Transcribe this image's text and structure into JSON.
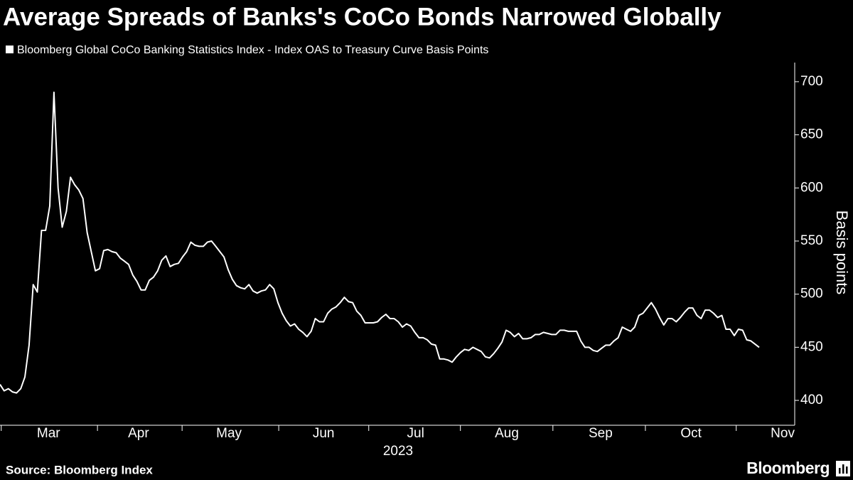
{
  "chart_data": {
    "type": "line",
    "title": "Average Spreads of Banks's CoCo Bonds Narrowed Globally",
    "source": "Source: Bloomberg Index",
    "brand": "Bloomberg",
    "ylabel": "Basis points",
    "x_sublabel": "2023",
    "series": [
      {
        "name": "Bloomberg Global CoCo Banking Statistics Index - Index OAS to Treasury Curve Basis Points",
        "color": "#ffffff",
        "values": [
          415,
          409,
          411,
          408,
          407,
          411,
          422,
          452,
          509,
          502,
          560,
          560,
          583,
          690,
          600,
          563,
          578,
          610,
          603,
          598,
          590,
          558,
          540,
          522,
          524,
          541,
          542,
          540,
          539,
          534,
          531,
          528,
          518,
          512,
          504,
          504,
          513,
          516,
          522,
          532,
          536,
          526,
          528,
          529,
          535,
          540,
          549,
          546,
          545,
          545,
          549,
          550,
          545,
          540,
          535,
          523,
          514,
          508,
          506,
          505,
          509,
          503,
          501,
          503,
          504,
          509,
          505,
          492,
          482,
          475,
          470,
          472,
          467,
          464,
          460,
          465,
          477,
          474,
          474,
          482,
          486,
          488,
          492,
          497,
          493,
          492,
          484,
          480,
          473,
          473,
          473,
          474,
          478,
          481,
          477,
          477,
          474,
          469,
          472,
          470,
          464,
          459,
          459,
          457,
          453,
          452,
          439,
          439,
          438,
          436,
          441,
          445,
          448,
          447,
          450,
          448,
          446,
          441,
          440,
          444,
          449,
          455,
          466,
          464,
          460,
          463,
          458,
          458,
          459,
          462,
          462,
          464,
          463,
          462,
          462,
          466,
          466,
          465,
          465,
          465,
          456,
          450,
          450,
          447,
          446,
          449,
          452,
          452,
          456,
          459,
          469,
          467,
          465,
          469,
          480,
          482,
          487,
          492,
          486,
          478,
          471,
          477,
          477,
          474,
          478,
          483,
          487,
          487,
          480,
          477,
          485,
          485,
          482,
          478,
          480,
          467,
          467,
          461,
          467,
          466,
          457,
          456,
          453,
          450
        ]
      }
    ],
    "xlim": [
      0,
      191.6
    ],
    "xticks": [
      {
        "value": 11.7,
        "label": "Mar"
      },
      {
        "value": 33.4,
        "label": "Apr"
      },
      {
        "value": 55.2,
        "label": "May"
      },
      {
        "value": 78,
        "label": "Jun"
      },
      {
        "value": 100.2,
        "label": "Jul"
      },
      {
        "value": 122.2,
        "label": "Aug"
      },
      {
        "value": 144.8,
        "label": "Sep"
      },
      {
        "value": 166.6,
        "label": "Oct"
      },
      {
        "value": 188.7,
        "label": "Nov"
      }
    ],
    "xminorticks": [
      0.3,
      23.5,
      43.9,
      67.2,
      88.9,
      111,
      133.3,
      155.6,
      177.5
    ],
    "ylim": [
      376.6,
      718
    ],
    "yticks": [
      400,
      450,
      500,
      550,
      600,
      650,
      700
    ],
    "grid": false
  }
}
